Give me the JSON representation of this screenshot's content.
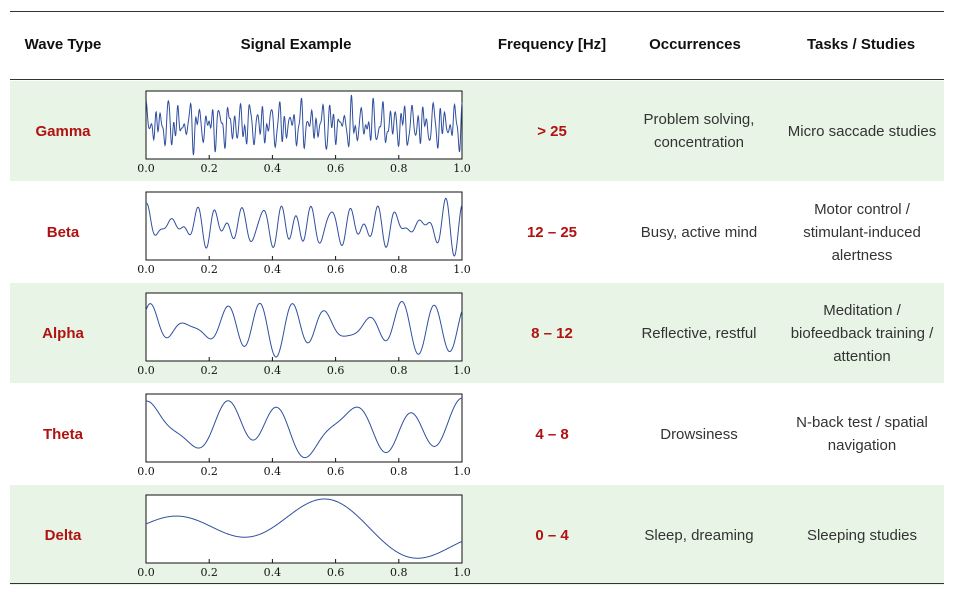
{
  "headers": {
    "wave_type": "Wave Type",
    "signal_example": "Signal Example",
    "frequency": "Frequency [Hz]",
    "occurrences": "Occurrences",
    "tasks": "Tasks / Studies"
  },
  "axis_ticks": [
    "0.0",
    "0.2",
    "0.4",
    "0.6",
    "0.8",
    "1.0"
  ],
  "colors": {
    "wave_name": "#b01212",
    "row_shade": "#e8f5e6",
    "signal_line": "#2f4f9e"
  },
  "rows": [
    {
      "name": "Gamma",
      "frequency": "> 25",
      "occurrences": "Problem solving, concentration",
      "tasks": "Micro saccade studies",
      "shaded": true
    },
    {
      "name": "Beta",
      "frequency": "12 – 25",
      "occurrences": "Busy, active mind",
      "tasks": "Motor control / stimulant-induced alertness",
      "shaded": false
    },
    {
      "name": "Alpha",
      "frequency": "8 – 12",
      "occurrences": "Reflective, restful",
      "tasks": "Meditation / biofeedback training / attention",
      "shaded": true
    },
    {
      "name": "Theta",
      "frequency": "4 – 8",
      "occurrences": "Drowsiness",
      "tasks": "N-back test / spatial navigation",
      "shaded": false
    },
    {
      "name": "Delta",
      "frequency": "0 – 4",
      "occurrences": "Sleep, dreaming",
      "tasks": "Sleeping studies",
      "shaded": true
    }
  ]
}
